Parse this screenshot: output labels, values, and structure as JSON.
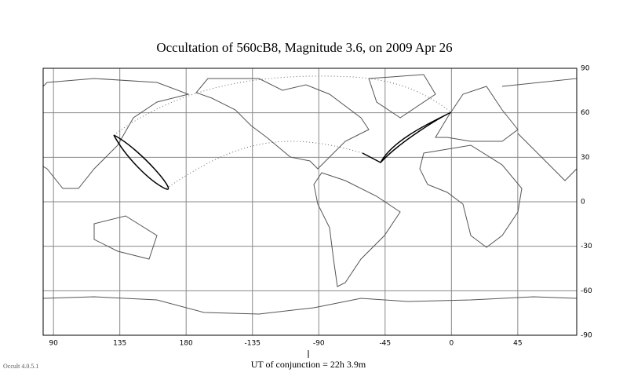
{
  "chart_data": {
    "type": "map",
    "title": "Occultation  of  560cB8,      Magnitude 3.6,    on  2009 Apr 26",
    "conjunction_label": "UT of conjunction = 22h  3.9m",
    "version": "Occult 4.0.5.1",
    "xlim": [
      83,
      445
    ],
    "xticks": [
      90,
      135,
      180,
      {
        "value": 225,
        "label": "-135"
      },
      {
        "value": 270,
        "label": "-90"
      },
      {
        "value": 315,
        "label": "-45"
      },
      {
        "value": 360,
        "label": "0"
      },
      {
        "value": 405,
        "label": "45"
      }
    ],
    "ylim": [
      -90,
      90
    ],
    "yticks": [
      -90,
      -60,
      -30,
      0,
      30,
      60,
      90
    ],
    "grid": true
  }
}
